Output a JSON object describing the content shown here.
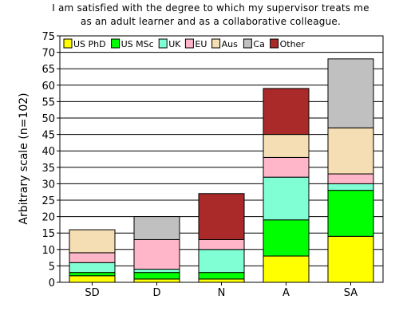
{
  "chart_data": {
    "type": "bar",
    "stacked": true,
    "title_lines": [
      "I am satisfied with the degree to which my supervisor treats me",
      "as an adult learner and as a collaborative colleague."
    ],
    "ylabel": "Arbitrary scale (n=102)",
    "xlabel": "",
    "categories": [
      "SD",
      "D",
      "N",
      "A",
      "SA"
    ],
    "ylim": [
      0,
      75
    ],
    "ytick_step": 5,
    "grid": "horizontal",
    "legend_position": "top-left",
    "series": [
      {
        "name": "US PhD",
        "color": "#ffff00",
        "values": [
          2,
          1,
          1,
          8,
          14
        ]
      },
      {
        "name": "US MSc",
        "color": "#00ff00",
        "values": [
          1,
          2,
          2,
          11,
          14
        ]
      },
      {
        "name": "UK",
        "color": "#80ffd5",
        "values": [
          3,
          1,
          7,
          13,
          2
        ]
      },
      {
        "name": "EU",
        "color": "#ffb6c8",
        "values": [
          3,
          9,
          3,
          6,
          3
        ]
      },
      {
        "name": "Aus",
        "color": "#f5deb3",
        "values": [
          7,
          0,
          0,
          7,
          14
        ]
      },
      {
        "name": "Ca",
        "color": "#c0c0c0",
        "values": [
          0,
          7,
          0,
          0,
          21
        ]
      },
      {
        "name": "Other",
        "color": "#aa2a2a",
        "values": [
          0,
          0,
          14,
          14,
          0
        ]
      }
    ]
  }
}
